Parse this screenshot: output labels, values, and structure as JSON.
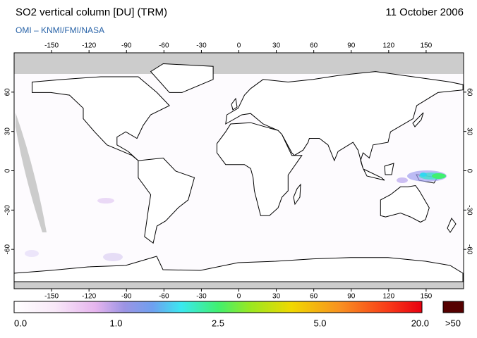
{
  "header": {
    "title": "SO2 vertical column [DU] (TRM)",
    "date": "11 October 2006",
    "source": "OMI  –  KNMI/FMI/NASA"
  },
  "map": {
    "lon_ticks": [
      -150,
      -120,
      -90,
      -60,
      -30,
      0,
      30,
      60,
      90,
      120,
      150
    ],
    "lat_ticks": [
      60,
      30,
      0,
      -30,
      -60
    ]
  },
  "colorbar": {
    "labels": [
      "0.0",
      "1.0",
      "2.5",
      "5.0",
      "20.0"
    ],
    "overflow_label": ">50"
  }
}
